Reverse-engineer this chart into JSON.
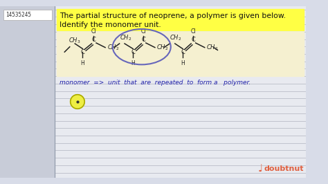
{
  "bg_color": "#d8dce8",
  "left_panel_color": "#c8ccd8",
  "question_id": "14535245",
  "title_line1": "The partial structure of neoprene, a polymer is given below.",
  "title_line2": "Identify the monomer unit.",
  "title_bg_color": "#ffff44",
  "chem_bg_color": "#f5f0d0",
  "white_area_color": "#e8eaf0",
  "monomer_text": "monomer  => unit  that  are  repeated  to  form a   polymer.",
  "dot_circle_color": "#eeee44",
  "doubtnut_color": "#e06040",
  "line_color": "#b0b4c0",
  "ellipse_color": "#6666bb",
  "structure_color": "#222222"
}
